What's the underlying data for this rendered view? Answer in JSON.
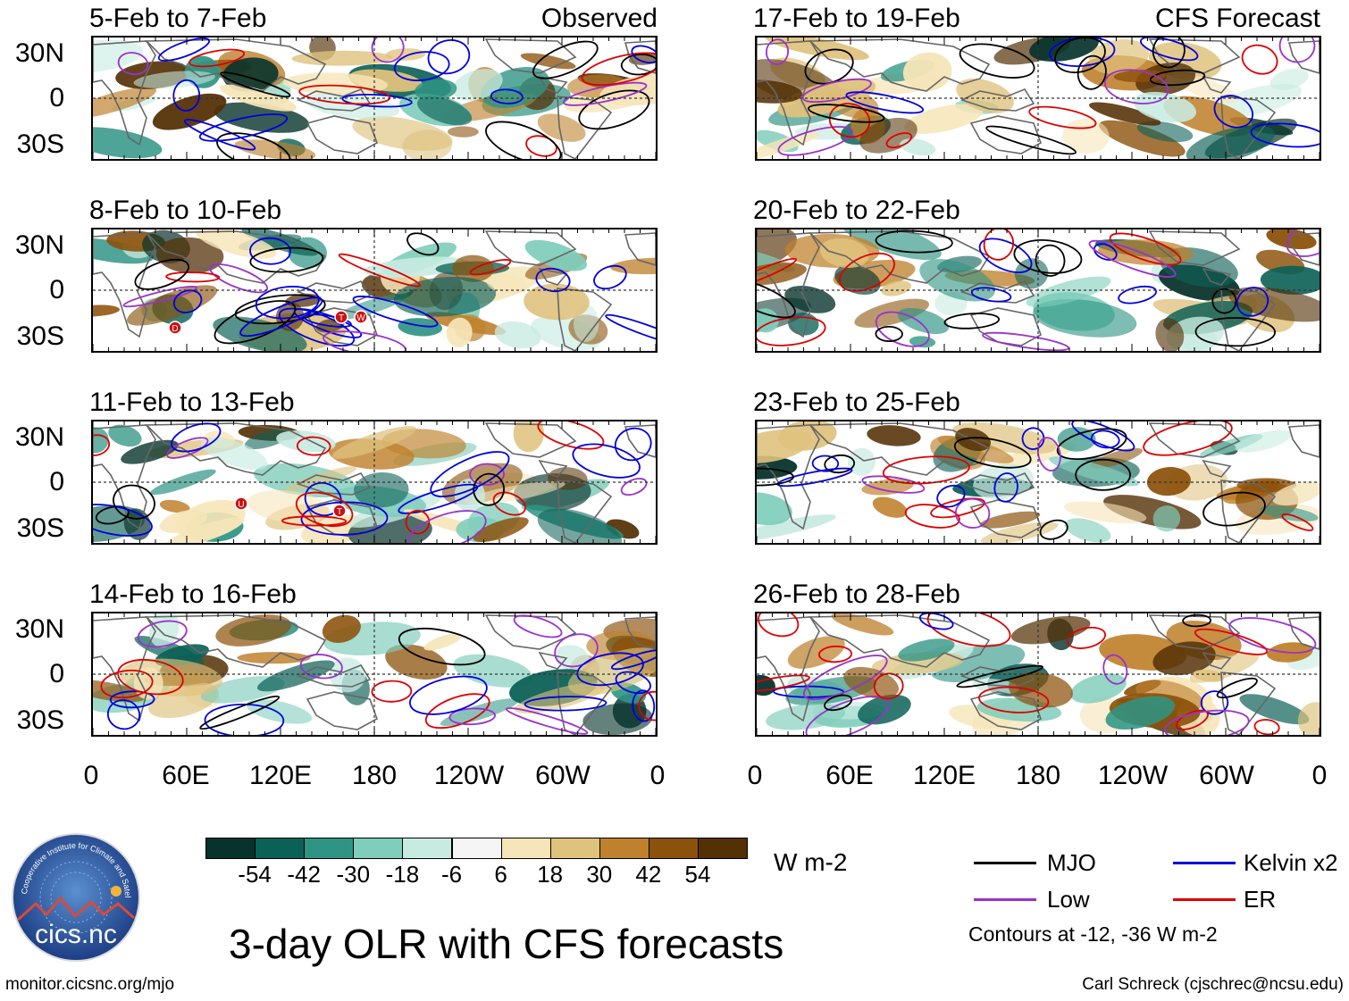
{
  "observed_label": "Observed",
  "forecast_label": "CFS Forecast",
  "panels_left": [
    {
      "title": "5-Feb to 7-Feb"
    },
    {
      "title": "8-Feb to 10-Feb"
    },
    {
      "title": "11-Feb to 13-Feb"
    },
    {
      "title": "14-Feb to 16-Feb"
    }
  ],
  "panels_right": [
    {
      "title": "17-Feb to 19-Feb"
    },
    {
      "title": "20-Feb to 22-Feb"
    },
    {
      "title": "23-Feb to 25-Feb"
    },
    {
      "title": "26-Feb to 28-Feb"
    }
  ],
  "lat_labels": [
    "30N",
    "0",
    "30S"
  ],
  "lon_labels": [
    "0",
    "60E",
    "120E",
    "180",
    "120W",
    "60W",
    "0"
  ],
  "colorbar": {
    "units": "W m-2",
    "ticks": [
      "-54",
      "-42",
      "-30",
      "-18",
      "-6",
      "6",
      "18",
      "30",
      "42",
      "54"
    ],
    "colors": [
      "#07332c",
      "#0c6157",
      "#2f9484",
      "#7fcdbb",
      "#c8ebe1",
      "#f5f5f5",
      "#f6e5b8",
      "#dfc27d",
      "#bf812d",
      "#8c510a",
      "#543005"
    ]
  },
  "legend": [
    {
      "label": "MJO",
      "color": "#000000"
    },
    {
      "label": "Kelvin x2",
      "color": "#0000dd"
    },
    {
      "label": "Low",
      "color": "#9932cc"
    },
    {
      "label": "ER",
      "color": "#dd0000"
    }
  ],
  "contour_note": "Contours at -12, -36 W m-2",
  "main_title": "3-day OLR with CFS forecasts",
  "logo_text": "cics.nc",
  "logo_ring_text": "Cooperative Institute for Climate and Satellites",
  "website": "monitor.cicsnc.org/mjo",
  "credit": "Carl Schreck (cjschrec@ncsu.edu)",
  "storm_markers": [
    {
      "panel": 1,
      "letter": "D"
    },
    {
      "panel": 1,
      "letter": "T"
    },
    {
      "panel": 1,
      "letter": "W"
    },
    {
      "panel": 2,
      "letter": "U"
    },
    {
      "panel": 2,
      "letter": "T"
    }
  ]
}
